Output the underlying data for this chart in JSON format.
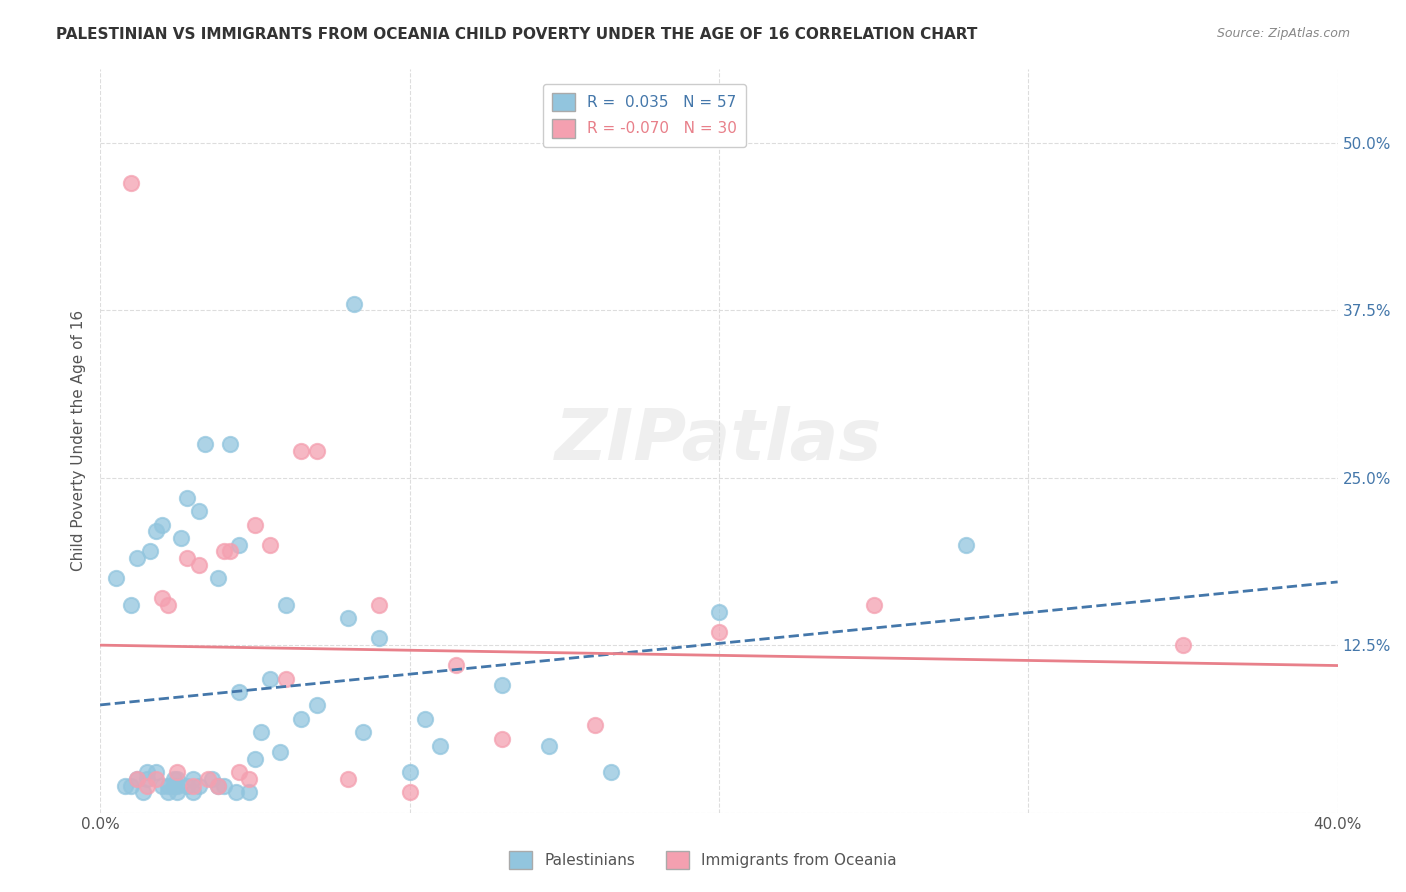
{
  "title": "PALESTINIAN VS IMMIGRANTS FROM OCEANIA CHILD POVERTY UNDER THE AGE OF 16 CORRELATION CHART",
  "source": "Source: ZipAtlas.com",
  "xlabel": "",
  "ylabel": "Child Poverty Under the Age of 16",
  "xlim": [
    0.0,
    0.4
  ],
  "ylim": [
    0.0,
    0.5556
  ],
  "xticks": [
    0.0,
    0.1,
    0.2,
    0.3,
    0.4
  ],
  "xticklabels": [
    "0.0%",
    "",
    "",
    "",
    "40.0%"
  ],
  "yticks": [
    0.0,
    0.125,
    0.25,
    0.375,
    0.5
  ],
  "yticklabels": [
    "",
    "12.5%",
    "25.0%",
    "37.5%",
    "50.0%"
  ],
  "blue_R": 0.035,
  "blue_N": 57,
  "pink_R": -0.07,
  "pink_N": 30,
  "blue_label": "Palestinians",
  "pink_label": "Immigrants from Oceania",
  "blue_color": "#92C5DE",
  "pink_color": "#F4A0B0",
  "blue_line_color": "#4477AA",
  "pink_line_color": "#E8808A",
  "blue_points_x": [
    0.005,
    0.008,
    0.01,
    0.01,
    0.012,
    0.012,
    0.014,
    0.015,
    0.015,
    0.016,
    0.018,
    0.018,
    0.02,
    0.02,
    0.022,
    0.022,
    0.024,
    0.024,
    0.025,
    0.025,
    0.025,
    0.026,
    0.028,
    0.028,
    0.03,
    0.03,
    0.032,
    0.032,
    0.034,
    0.036,
    0.038,
    0.038,
    0.04,
    0.042,
    0.044,
    0.045,
    0.045,
    0.048,
    0.05,
    0.052,
    0.055,
    0.058,
    0.06,
    0.065,
    0.07,
    0.08,
    0.082,
    0.085,
    0.09,
    0.1,
    0.105,
    0.11,
    0.13,
    0.145,
    0.165,
    0.2,
    0.28
  ],
  "blue_points_y": [
    0.175,
    0.02,
    0.02,
    0.155,
    0.19,
    0.025,
    0.015,
    0.025,
    0.03,
    0.195,
    0.21,
    0.03,
    0.02,
    0.215,
    0.015,
    0.02,
    0.02,
    0.025,
    0.015,
    0.02,
    0.025,
    0.205,
    0.02,
    0.235,
    0.015,
    0.025,
    0.02,
    0.225,
    0.275,
    0.025,
    0.02,
    0.175,
    0.02,
    0.275,
    0.015,
    0.09,
    0.2,
    0.015,
    0.04,
    0.06,
    0.1,
    0.045,
    0.155,
    0.07,
    0.08,
    0.145,
    0.38,
    0.06,
    0.13,
    0.03,
    0.07,
    0.05,
    0.095,
    0.05,
    0.03,
    0.15,
    0.2
  ],
  "pink_points_x": [
    0.01,
    0.012,
    0.015,
    0.018,
    0.02,
    0.022,
    0.025,
    0.028,
    0.03,
    0.032,
    0.035,
    0.038,
    0.04,
    0.042,
    0.045,
    0.048,
    0.05,
    0.055,
    0.06,
    0.065,
    0.07,
    0.08,
    0.09,
    0.1,
    0.115,
    0.13,
    0.16,
    0.2,
    0.25,
    0.35
  ],
  "pink_points_y": [
    0.47,
    0.025,
    0.02,
    0.025,
    0.16,
    0.155,
    0.03,
    0.19,
    0.02,
    0.185,
    0.025,
    0.02,
    0.195,
    0.195,
    0.03,
    0.025,
    0.215,
    0.2,
    0.1,
    0.27,
    0.27,
    0.025,
    0.155,
    0.015,
    0.11,
    0.055,
    0.065,
    0.135,
    0.155,
    0.125
  ],
  "watermark": "ZIPatlas",
  "background_color": "#FFFFFF",
  "grid_color": "#DDDDDD"
}
